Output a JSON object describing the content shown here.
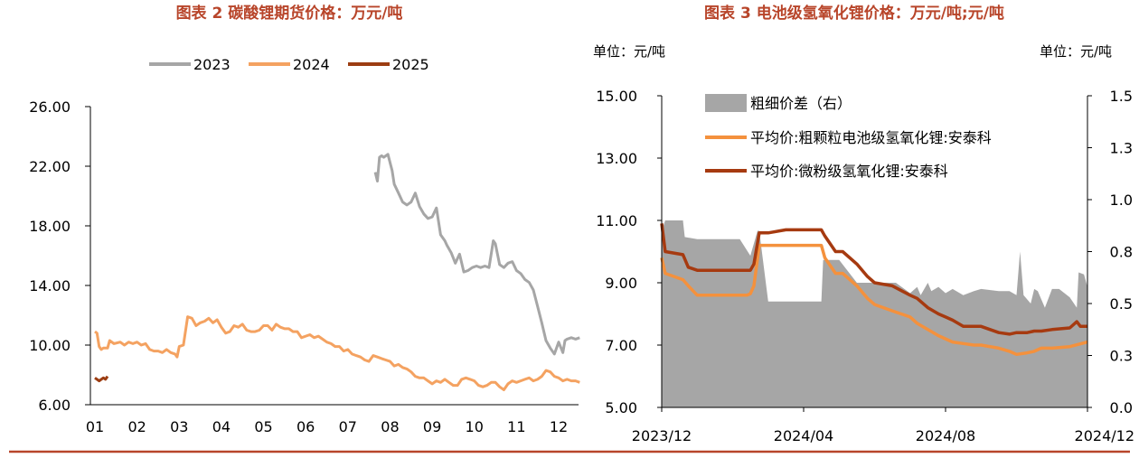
{
  "colors": {
    "title": "#b8452a",
    "rule": "#b8452a",
    "s2023": "#a6a6a6",
    "s2024": "#f4a261",
    "s2025": "#9c3d12",
    "spread": "#a6a6a6",
    "coarse": "#f4913d",
    "micro": "#a63a10"
  },
  "chart_data": [
    {
      "type": "line",
      "title": "图表 2 碳酸锂期货价格：万元/吨",
      "xlabel": "",
      "ylabel": "",
      "xlim": [
        1,
        12.7
      ],
      "ylim": [
        6,
        26
      ],
      "yticks": [
        "6.00",
        "10.00",
        "14.00",
        "18.00",
        "22.00",
        "26.00"
      ],
      "xticks": [
        "01",
        "02",
        "03",
        "04",
        "05",
        "06",
        "07",
        "08",
        "09",
        "10",
        "11",
        "12"
      ],
      "legend_position": "top",
      "grid": false,
      "series": [
        {
          "name": "2023",
          "color": "#a6a6a6",
          "x": [
            7.65,
            7.7,
            7.75,
            7.8,
            7.85,
            7.95,
            8.05,
            8.1,
            8.2,
            8.3,
            8.4,
            8.45,
            8.5,
            8.6,
            8.7,
            8.8,
            8.9,
            9.0,
            9.1,
            9.2,
            9.3,
            9.35,
            9.45,
            9.55,
            9.65,
            9.75,
            9.85,
            9.95,
            10.05,
            10.15,
            10.25,
            10.35,
            10.45,
            10.5,
            10.6,
            10.7,
            10.8,
            10.9,
            11.0,
            11.1,
            11.2,
            11.3,
            11.4,
            11.5,
            11.6,
            11.7,
            11.8,
            11.9,
            12.0,
            12.1,
            12.15,
            12.2,
            12.3,
            12.4,
            12.5
          ],
          "values": [
            21.6,
            21.0,
            22.6,
            22.7,
            22.6,
            22.8,
            21.7,
            20.8,
            20.2,
            19.6,
            19.4,
            19.5,
            19.6,
            20.2,
            19.3,
            18.8,
            18.5,
            18.6,
            19.2,
            17.4,
            17.0,
            16.7,
            16.2,
            15.5,
            16.1,
            14.9,
            15.0,
            15.2,
            15.3,
            15.2,
            15.3,
            15.2,
            17.0,
            16.8,
            15.4,
            15.2,
            15.5,
            15.6,
            15.0,
            14.8,
            14.4,
            14.2,
            13.7,
            12.6,
            11.5,
            10.3,
            9.8,
            9.4,
            10.2,
            9.5,
            10.3,
            10.4,
            10.5,
            10.4,
            10.5
          ]
        },
        {
          "name": "2024",
          "color": "#f4a261",
          "x": [
            1.0,
            1.05,
            1.1,
            1.15,
            1.2,
            1.3,
            1.35,
            1.45,
            1.6,
            1.7,
            1.8,
            1.9,
            2.0,
            2.1,
            2.2,
            2.3,
            2.4,
            2.5,
            2.6,
            2.7,
            2.8,
            2.9,
            2.95,
            3.0,
            3.1,
            3.2,
            3.3,
            3.4,
            3.5,
            3.6,
            3.7,
            3.8,
            3.9,
            4.0,
            4.1,
            4.2,
            4.3,
            4.4,
            4.5,
            4.6,
            4.7,
            4.8,
            4.9,
            5.0,
            5.1,
            5.2,
            5.3,
            5.4,
            5.5,
            5.6,
            5.7,
            5.8,
            5.9,
            6.0,
            6.1,
            6.2,
            6.3,
            6.4,
            6.5,
            6.6,
            6.7,
            6.8,
            6.9,
            7.0,
            7.1,
            7.2,
            7.3,
            7.4,
            7.5,
            7.6,
            7.7,
            7.8,
            7.9,
            8.0,
            8.1,
            8.2,
            8.3,
            8.4,
            8.5,
            8.6,
            8.7,
            8.8,
            8.9,
            9.0,
            9.1,
            9.2,
            9.3,
            9.4,
            9.5,
            9.6,
            9.7,
            9.8,
            9.9,
            10.0,
            10.1,
            10.2,
            10.3,
            10.4,
            10.5,
            10.6,
            10.7,
            10.8,
            10.9,
            11.0,
            11.1,
            11.2,
            11.3,
            11.4,
            11.5,
            11.6,
            11.7,
            11.8,
            11.9,
            12.0,
            12.1,
            12.2,
            12.3,
            12.4,
            12.5
          ],
          "values": [
            10.9,
            10.8,
            9.9,
            9.7,
            9.8,
            9.8,
            10.3,
            10.1,
            10.2,
            10.0,
            10.2,
            10.1,
            10.2,
            10.0,
            10.1,
            9.7,
            9.6,
            9.6,
            9.5,
            9.7,
            9.5,
            9.4,
            9.2,
            9.9,
            10.0,
            11.9,
            11.8,
            11.3,
            11.5,
            11.6,
            11.8,
            11.5,
            11.7,
            11.2,
            10.8,
            10.9,
            11.3,
            11.2,
            11.4,
            11.0,
            10.9,
            10.9,
            11.0,
            11.3,
            11.3,
            11.0,
            11.4,
            11.2,
            11.1,
            11.1,
            10.9,
            10.9,
            10.5,
            10.6,
            10.7,
            10.5,
            10.6,
            10.4,
            10.2,
            10.1,
            9.9,
            9.9,
            9.6,
            9.7,
            9.4,
            9.3,
            9.2,
            9.0,
            8.9,
            9.3,
            9.2,
            9.1,
            9.0,
            8.9,
            8.6,
            8.7,
            8.5,
            8.4,
            8.2,
            7.9,
            7.8,
            7.8,
            7.6,
            7.4,
            7.6,
            7.5,
            7.7,
            7.5,
            7.3,
            7.3,
            7.7,
            7.8,
            7.7,
            7.6,
            7.3,
            7.2,
            7.3,
            7.5,
            7.5,
            7.2,
            7.0,
            7.4,
            7.6,
            7.5,
            7.6,
            7.7,
            7.8,
            7.6,
            7.7,
            7.9,
            8.3,
            8.2,
            7.9,
            7.8,
            7.6,
            7.7,
            7.6,
            7.6,
            7.5
          ]
        },
        {
          "name": "2025",
          "color": "#9c3d12",
          "x": [
            1.0,
            1.1,
            1.2,
            1.25,
            1.3
          ],
          "values": [
            7.8,
            7.6,
            7.8,
            7.7,
            7.9
          ]
        }
      ]
    },
    {
      "type": "line",
      "title": "图表 3 电池级氢氧化锂价格：万元/吨;元/吨",
      "xlabel": "",
      "ylabel": "",
      "y_left_unit": "单位：元/吨",
      "y_right_unit": "单位：元/吨",
      "xlim": [
        0,
        12
      ],
      "ylim": [
        5,
        15
      ],
      "ylim_right": [
        0,
        1.5
      ],
      "yticks": [
        "5.00",
        "7.00",
        "9.00",
        "11.00",
        "13.00",
        "15.00"
      ],
      "yticks_right": [
        "0.0",
        "0.3",
        "0.5",
        "0.8",
        "1.0",
        "1.3",
        "1.5"
      ],
      "xticks": [
        "2023/12",
        "2024/04",
        "2024/08",
        "2024/12"
      ],
      "xtick_positions": [
        0,
        4,
        8,
        12
      ],
      "legend_position": "top-left",
      "grid": false,
      "series": [
        {
          "name": "粗细价差（右）",
          "axis": "right",
          "kind": "area",
          "color": "#a6a6a6",
          "x": [
            0,
            0.1,
            0.6,
            0.65,
            1.0,
            1.7,
            2.2,
            2.5,
            2.7,
            2.75,
            3.0,
            4.5,
            4.55,
            5.0,
            5.5,
            5.8,
            6.0,
            6.4,
            6.5,
            6.6,
            7.0,
            7.2,
            7.3,
            7.5,
            7.6,
            7.8,
            8.0,
            8.2,
            8.5,
            8.8,
            9.0,
            9.5,
            9.8,
            10.0,
            10.1,
            10.2,
            10.4,
            10.5,
            10.6,
            10.8,
            11.0,
            11.2,
            11.5,
            11.7,
            11.75,
            11.9,
            12.0
          ],
          "values": [
            0.85,
            0.9,
            0.9,
            0.82,
            0.81,
            0.81,
            0.81,
            0.73,
            0.85,
            0.85,
            0.51,
            0.51,
            0.71,
            0.71,
            0.6,
            0.6,
            0.6,
            0.6,
            0.6,
            0.6,
            0.55,
            0.58,
            0.54,
            0.6,
            0.56,
            0.58,
            0.55,
            0.57,
            0.54,
            0.56,
            0.57,
            0.56,
            0.56,
            0.54,
            0.75,
            0.54,
            0.5,
            0.57,
            0.56,
            0.48,
            0.57,
            0.57,
            0.53,
            0.48,
            0.65,
            0.64,
            0.58
          ]
        },
        {
          "name": "平均价:粗颗粒电池级氢氧化锂:安泰科",
          "axis": "left",
          "color": "#f4913d",
          "x": [
            0,
            0.1,
            0.6,
            0.75,
            1.0,
            2.4,
            2.5,
            2.6,
            2.75,
            3.0,
            4.5,
            4.6,
            4.9,
            5.1,
            5.5,
            5.8,
            6.0,
            6.5,
            7.0,
            7.2,
            7.5,
            7.8,
            8.0,
            8.2,
            8.5,
            8.8,
            9.0,
            9.5,
            9.8,
            10.0,
            10.3,
            10.5,
            10.7,
            11.0,
            11.5,
            12.0
          ],
          "values": [
            9.8,
            9.3,
            9.1,
            8.9,
            8.6,
            8.6,
            8.65,
            8.9,
            10.2,
            10.2,
            10.2,
            9.8,
            9.3,
            9.3,
            8.9,
            8.5,
            8.3,
            8.1,
            7.9,
            7.7,
            7.5,
            7.3,
            7.2,
            7.1,
            7.05,
            7.0,
            7.0,
            6.9,
            6.8,
            6.7,
            6.75,
            6.8,
            6.9,
            6.9,
            6.95,
            7.1
          ]
        },
        {
          "name": "平均价:微粉级氢氧化锂:安泰科",
          "axis": "left",
          "color": "#a63a10",
          "x": [
            0,
            0.1,
            0.6,
            0.75,
            1.0,
            2.4,
            2.5,
            2.6,
            2.75,
            3.0,
            3.5,
            4.0,
            4.5,
            4.6,
            4.9,
            5.1,
            5.5,
            5.8,
            6.0,
            6.5,
            7.0,
            7.2,
            7.5,
            7.8,
            8.0,
            8.2,
            8.5,
            8.8,
            9.0,
            9.5,
            9.8,
            10.0,
            10.3,
            10.5,
            10.7,
            11.0,
            11.5,
            11.7,
            11.8,
            12.0
          ],
          "values": [
            10.9,
            10.0,
            9.9,
            9.5,
            9.4,
            9.4,
            9.4,
            9.6,
            10.6,
            10.6,
            10.7,
            10.7,
            10.7,
            10.5,
            10.0,
            10.0,
            9.6,
            9.2,
            9.0,
            8.9,
            8.6,
            8.5,
            8.2,
            8.0,
            7.9,
            7.8,
            7.6,
            7.6,
            7.6,
            7.4,
            7.35,
            7.4,
            7.4,
            7.45,
            7.45,
            7.5,
            7.55,
            7.75,
            7.6,
            7.6
          ]
        }
      ]
    }
  ]
}
